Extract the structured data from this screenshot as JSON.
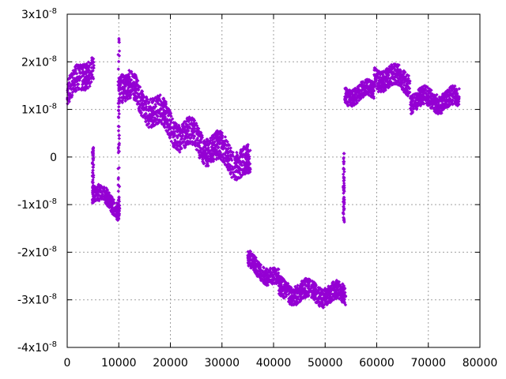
{
  "chart_data": {
    "type": "scatter",
    "title": "",
    "xlabel": "",
    "ylabel": "",
    "xlim": [
      0,
      80000
    ],
    "ylim": [
      -4e-08,
      3e-08
    ],
    "grid": true,
    "legend": "none",
    "color": "#9400d3",
    "marker": "small-diamond",
    "x_ticks": [
      {
        "value": 0,
        "label": "0"
      },
      {
        "value": 10000,
        "label": "10000"
      },
      {
        "value": 20000,
        "label": "20000"
      },
      {
        "value": 30000,
        "label": "30000"
      },
      {
        "value": 40000,
        "label": "40000"
      },
      {
        "value": 50000,
        "label": "50000"
      },
      {
        "value": 60000,
        "label": "60000"
      },
      {
        "value": 70000,
        "label": "70000"
      },
      {
        "value": 80000,
        "label": "80000"
      }
    ],
    "y_ticks": [
      {
        "value": 3e-08,
        "mant": "3x10",
        "exp": "-8"
      },
      {
        "value": 2e-08,
        "mant": "2x10",
        "exp": "-8"
      },
      {
        "value": 1e-08,
        "mant": "1x10",
        "exp": "-8"
      },
      {
        "value": 0,
        "mant": "0",
        "exp": ""
      },
      {
        "value": -1e-08,
        "mant": "-1x10",
        "exp": "-8"
      },
      {
        "value": -2e-08,
        "mant": "-2x10",
        "exp": "-8"
      },
      {
        "value": -3e-08,
        "mant": "-3x10",
        "exp": "-8"
      },
      {
        "value": -4e-08,
        "mant": "-4x10",
        "exp": "-8"
      }
    ],
    "segments": [
      {
        "x": [
          0,
          5200
        ],
        "center": [
          1.3e-08,
          2e-08
        ],
        "spread": 5.5e-09,
        "note": "rising band"
      },
      {
        "x": [
          5000,
          10200
        ],
        "center": [
          -7e-09,
          -1.1e-08
        ],
        "spread": 3.5e-09
      },
      {
        "x": [
          10000,
          22000
        ],
        "center": [
          1.6e-08,
          5e-09
        ],
        "spread": 6e-09
      },
      {
        "x": [
          22000,
          35500
        ],
        "center": [
          5e-09,
          -2e-09
        ],
        "spread": 6e-09
      },
      {
        "x": [
          35000,
          41000
        ],
        "center": [
          -2.2e-08,
          -2.6e-08
        ],
        "spread": 3.5e-09
      },
      {
        "x": [
          41000,
          54000
        ],
        "center": [
          -2.8e-08,
          -2.9e-08
        ],
        "spread": 4e-09
      },
      {
        "x": [
          53800,
          59500
        ],
        "center": [
          1.3e-08,
          1.4e-08
        ],
        "spread": 3.5e-09
      },
      {
        "x": [
          59500,
          66500
        ],
        "center": [
          1.7e-08,
          1.6e-08
        ],
        "spread": 4.5e-09
      },
      {
        "x": [
          66500,
          76000
        ],
        "center": [
          1.2e-08,
          1.2e-08
        ],
        "spread": 4e-09
      }
    ],
    "spikes": [
      {
        "x": 5000,
        "y": [
          -1e-08,
          2e-09
        ]
      },
      {
        "x": 10000,
        "y": [
          -1.3e-08,
          2.5e-08
        ]
      },
      {
        "x": 53600,
        "y": [
          -1.4e-08,
          1e-09
        ]
      }
    ]
  }
}
